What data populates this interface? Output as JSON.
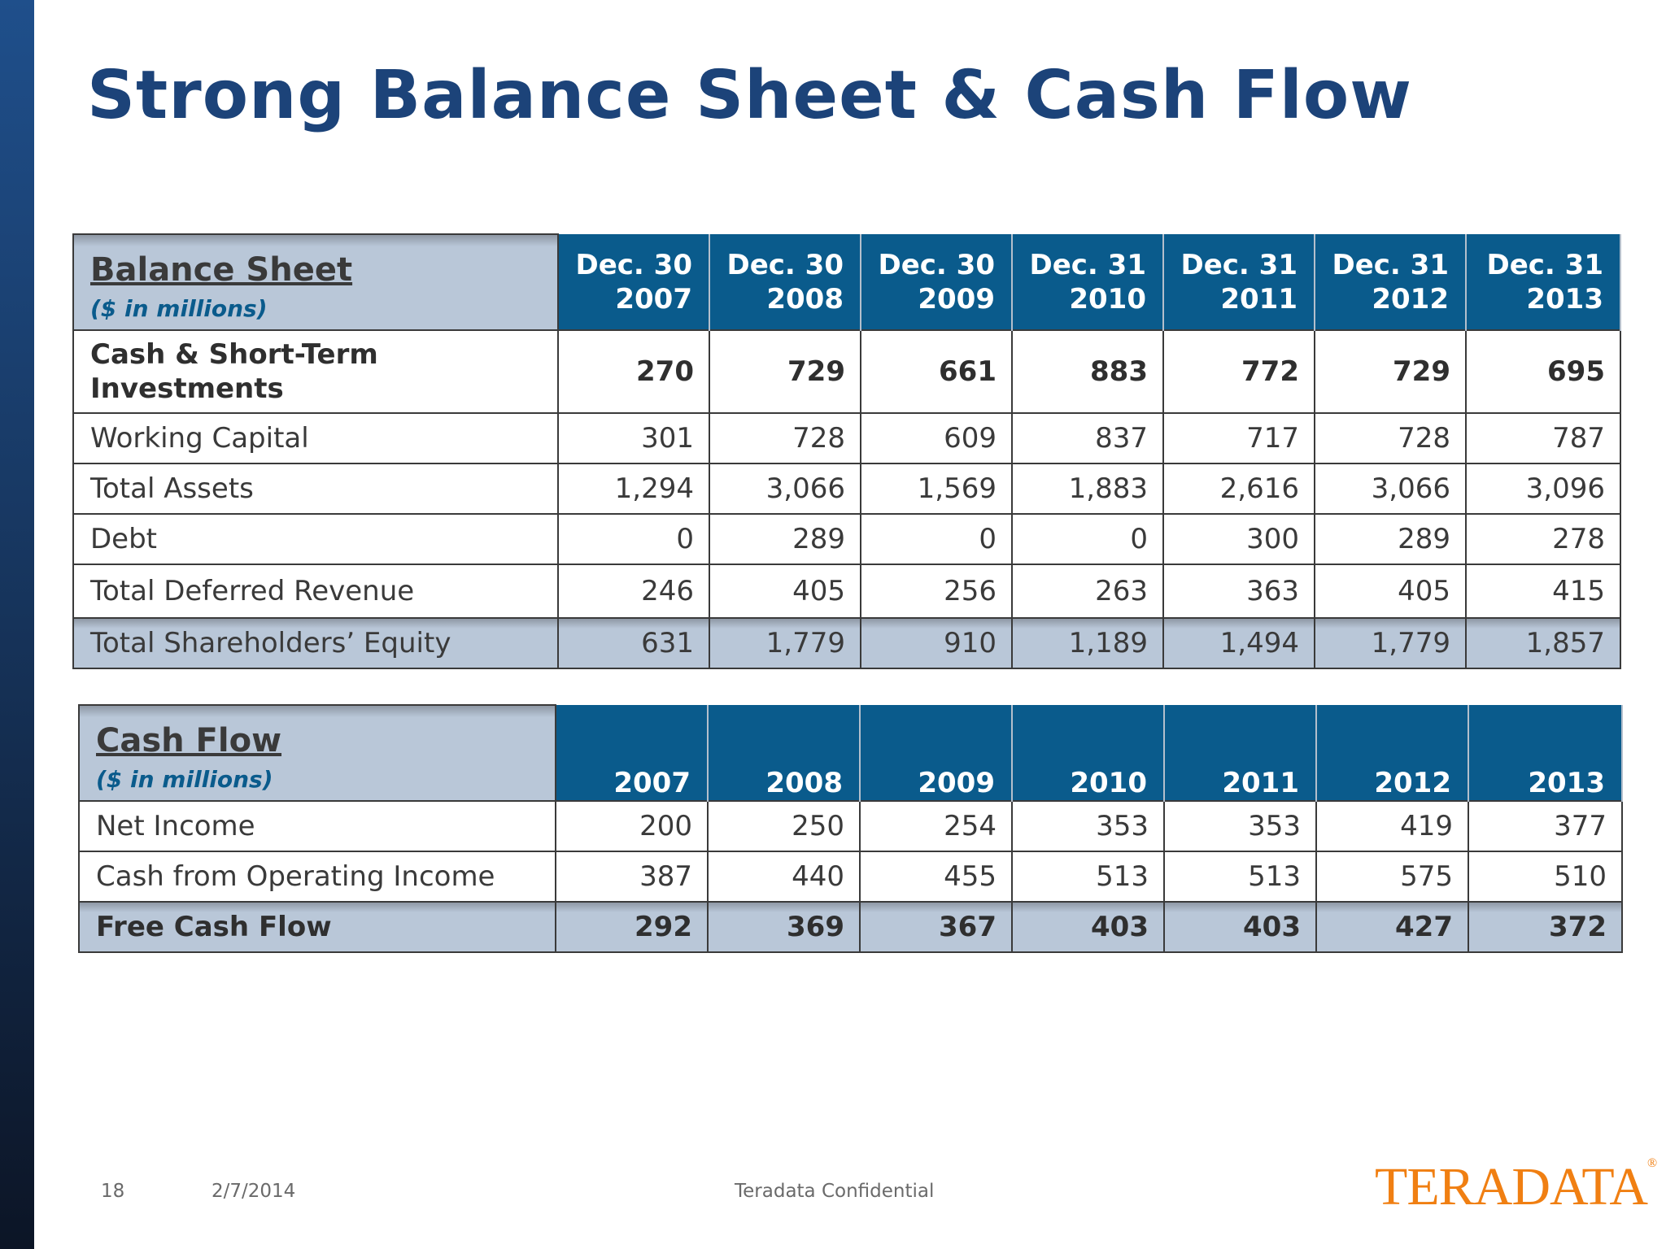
{
  "title": "Strong Balance Sheet & Cash Flow",
  "balance_sheet": {
    "title": "Balance Sheet",
    "subtitle": "($ in millions)",
    "columns": [
      {
        "line1": "Dec. 30",
        "line2": "2007"
      },
      {
        "line1": "Dec. 30",
        "line2": "2008"
      },
      {
        "line1": "Dec. 30",
        "line2": "2009"
      },
      {
        "line1": "Dec. 31",
        "line2": "2010"
      },
      {
        "line1": "Dec. 31",
        "line2": "2011"
      },
      {
        "line1": "Dec. 31",
        "line2": "2012"
      },
      {
        "line1": "Dec. 31",
        "line2": "2013"
      }
    ],
    "rows": [
      {
        "label_line1": "Cash & Short-Term",
        "label_line2": "Investments",
        "values": [
          "270",
          "729",
          "661",
          "883",
          "772",
          "729",
          "695"
        ]
      },
      {
        "label": "Working Capital",
        "values": [
          "301",
          "728",
          "609",
          "837",
          "717",
          "728",
          "787"
        ]
      },
      {
        "label": "Total Assets",
        "values": [
          "1,294",
          "3,066",
          "1,569",
          "1,883",
          "2,616",
          "3,066",
          "3,096"
        ]
      },
      {
        "label": "Debt",
        "values": [
          "0",
          "289",
          "0",
          "0",
          "300",
          "289",
          "278"
        ]
      },
      {
        "label": "Total Deferred Revenue",
        "values": [
          "246",
          "405",
          "256",
          "263",
          "363",
          "405",
          "415"
        ]
      },
      {
        "label": "Total Shareholders’ Equity",
        "values": [
          "631",
          "1,779",
          "910",
          "1,189",
          "1,494",
          "1,779",
          "1,857"
        ]
      }
    ]
  },
  "cash_flow": {
    "title": "Cash Flow",
    "subtitle": "($ in millions)",
    "columns": [
      "2007",
      "2008",
      "2009",
      "2010",
      "2011",
      "2012",
      "2013"
    ],
    "rows": [
      {
        "label": "Net Income",
        "values": [
          "200",
          "250",
          "254",
          "353",
          "353",
          "419",
          "377"
        ]
      },
      {
        "label": "Cash from Operating Income",
        "values": [
          "387",
          "440",
          "455",
          "513",
          "513",
          "575",
          "510"
        ]
      },
      {
        "label": "Free Cash Flow",
        "values": [
          "292",
          "369",
          "367",
          "403",
          "403",
          "427",
          "372"
        ]
      }
    ]
  },
  "footer": {
    "page_number": "18",
    "date": "2/7/2014",
    "confidential": "Teradata Confidential",
    "logo_text": "TERADATA",
    "logo_mark": "®"
  },
  "colors": {
    "title": "#1c4379",
    "header_blue": "#0a5b8c",
    "header_label_bg": "#b9c7d8",
    "logo_orange": "#f07f12"
  }
}
